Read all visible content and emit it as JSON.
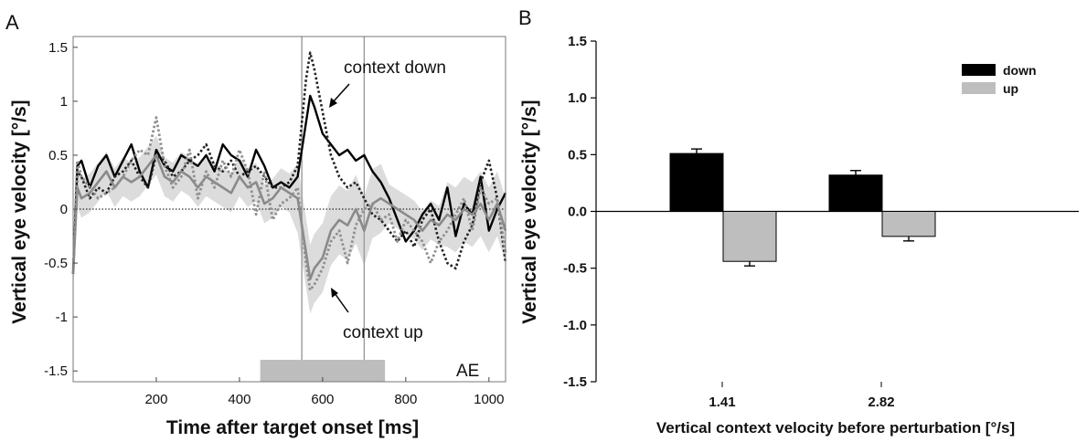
{
  "chart_data": [
    {
      "panel_label": "A",
      "type": "line",
      "xlabel": "Time after target onset [ms]",
      "ylabel": "Vertical eye velocity [°/s]",
      "xlim": [
        0,
        1040
      ],
      "ylim": [
        -1.6,
        1.6
      ],
      "xticks": [
        200,
        400,
        600,
        800,
        1000
      ],
      "yticks": [
        1.5,
        1,
        0.5,
        0,
        -0.5,
        -1,
        -1.5
      ],
      "vertical_lines_x": [
        550,
        700
      ],
      "perturbation_bar": [
        450,
        750
      ],
      "annotations": [
        "context down",
        "context up",
        "AE"
      ],
      "series": [
        {
          "style": "solid-black",
          "x": [
            0,
            10,
            20,
            40,
            60,
            80,
            100,
            120,
            140,
            160,
            180,
            200,
            220,
            240,
            260,
            280,
            300,
            320,
            340,
            360,
            380,
            400,
            420,
            440,
            460,
            480,
            500,
            520,
            540,
            560,
            570,
            580,
            600,
            620,
            640,
            660,
            680,
            700,
            720,
            740,
            760,
            780,
            800,
            820,
            840,
            860,
            880,
            900,
            920,
            940,
            960,
            980,
            1000,
            1020,
            1040
          ],
          "y": [
            -0.6,
            0.4,
            0.45,
            0.2,
            0.4,
            0.5,
            0.3,
            0.45,
            0.6,
            0.35,
            0.2,
            0.55,
            0.4,
            0.35,
            0.5,
            0.45,
            0.4,
            0.5,
            0.35,
            0.6,
            0.5,
            0.45,
            0.3,
            0.55,
            0.4,
            0.2,
            0.25,
            0.2,
            0.3,
            0.8,
            1.05,
            0.95,
            0.7,
            0.6,
            0.5,
            0.55,
            0.45,
            0.5,
            0.35,
            0.25,
            0.1,
            -0.1,
            -0.3,
            -0.2,
            -0.05,
            0.05,
            -0.1,
            0.2,
            -0.25,
            0.05,
            -0.05,
            0.3,
            -0.2,
            0.0,
            0.15
          ]
        },
        {
          "style": "dotted-black",
          "x": [
            0,
            10,
            20,
            40,
            60,
            80,
            100,
            120,
            140,
            160,
            180,
            200,
            220,
            240,
            260,
            280,
            300,
            320,
            340,
            360,
            380,
            400,
            420,
            440,
            460,
            480,
            500,
            520,
            540,
            560,
            570,
            580,
            600,
            620,
            640,
            660,
            680,
            700,
            720,
            740,
            760,
            780,
            800,
            820,
            840,
            860,
            880,
            900,
            920,
            940,
            960,
            980,
            1000,
            1020,
            1040
          ],
          "y": [
            -0.6,
            0.35,
            0.3,
            0.1,
            0.2,
            0.15,
            0.3,
            0.35,
            0.45,
            0.3,
            0.2,
            0.5,
            0.45,
            0.3,
            0.35,
            0.45,
            0.5,
            0.6,
            0.4,
            0.35,
            0.45,
            0.3,
            0.35,
            0.4,
            0.3,
            0.2,
            0.2,
            0.25,
            0.4,
            1.2,
            1.45,
            1.3,
            0.9,
            0.5,
            0.3,
            0.2,
            0.25,
            0.1,
            -0.05,
            -0.1,
            -0.2,
            -0.3,
            -0.2,
            -0.35,
            -0.1,
            0.0,
            -0.3,
            -0.5,
            -0.55,
            -0.3,
            -0.15,
            0.25,
            0.45,
            0.1,
            -0.5
          ]
        },
        {
          "style": "solid-gray",
          "x": [
            0,
            10,
            20,
            40,
            60,
            80,
            100,
            120,
            140,
            160,
            180,
            200,
            220,
            240,
            260,
            280,
            300,
            320,
            340,
            360,
            380,
            400,
            420,
            440,
            460,
            480,
            500,
            520,
            540,
            560,
            570,
            580,
            600,
            620,
            640,
            660,
            680,
            700,
            720,
            740,
            760,
            780,
            800,
            820,
            840,
            860,
            880,
            900,
            920,
            940,
            960,
            980,
            1000,
            1020,
            1040
          ],
          "y": [
            -0.6,
            0.2,
            0.1,
            0.15,
            0.25,
            0.35,
            0.2,
            0.3,
            0.25,
            0.3,
            0.4,
            0.5,
            0.3,
            0.25,
            0.35,
            0.3,
            0.2,
            0.3,
            0.25,
            0.2,
            0.15,
            0.3,
            0.2,
            0.25,
            0.05,
            0.1,
            0.2,
            0.15,
            0.1,
            -0.4,
            -0.65,
            -0.55,
            -0.45,
            -0.2,
            -0.1,
            -0.15,
            0.0,
            -0.2,
            0.05,
            0.1,
            0.05,
            0.0,
            -0.05,
            -0.1,
            -0.2,
            -0.1,
            -0.15,
            -0.05,
            -0.1,
            0.0,
            -0.05,
            0.05,
            -0.1,
            0.05,
            -0.2
          ]
        },
        {
          "style": "dotted-gray",
          "x": [
            0,
            10,
            20,
            40,
            60,
            80,
            100,
            120,
            140,
            160,
            180,
            200,
            220,
            240,
            260,
            280,
            300,
            320,
            340,
            360,
            380,
            400,
            420,
            440,
            460,
            480,
            500,
            520,
            540,
            560,
            570,
            580,
            600,
            620,
            640,
            660,
            680,
            700,
            720,
            740,
            760,
            780,
            800,
            820,
            840,
            860,
            880,
            900,
            920,
            940,
            960,
            980,
            1000,
            1020,
            1040
          ],
          "y": [
            -0.6,
            0.45,
            0.3,
            0.2,
            0.1,
            0.15,
            0.2,
            0.3,
            0.45,
            0.55,
            0.5,
            0.85,
            0.4,
            0.2,
            0.3,
            0.55,
            0.1,
            0.35,
            0.2,
            0.45,
            0.3,
            0.55,
            0.35,
            -0.05,
            0.35,
            -0.1,
            0.05,
            0.1,
            0.2,
            -0.5,
            -0.75,
            -0.7,
            -0.55,
            -0.3,
            -0.2,
            -0.5,
            -0.15,
            0.0,
            0.05,
            -0.1,
            -0.05,
            -0.3,
            -0.1,
            -0.2,
            -0.3,
            -0.5,
            -0.3,
            -0.2,
            -0.05,
            0.1,
            -0.2,
            0.2,
            0.05,
            0.1,
            -0.4
          ]
        }
      ]
    },
    {
      "panel_label": "B",
      "type": "bar",
      "xlabel": "Vertical context velocity before perturbation [°/s]",
      "ylabel": "Vertical eye velocity [°/s]",
      "categories": [
        "1.41",
        "2.82"
      ],
      "ylim": [
        -1.5,
        1.5
      ],
      "yticks": [
        "1.5",
        "1.0",
        "0.5",
        "0.0",
        "-0.5",
        "-1.0",
        "-1.5"
      ],
      "legend_position": "top-right",
      "series": [
        {
          "name": "down",
          "color": "#000000",
          "values": [
            0.51,
            0.32
          ],
          "errors": [
            0.04,
            0.04
          ]
        },
        {
          "name": "up",
          "color": "#bebebe",
          "values": [
            -0.44,
            -0.22
          ],
          "errors": [
            0.04,
            0.04
          ]
        }
      ]
    }
  ]
}
